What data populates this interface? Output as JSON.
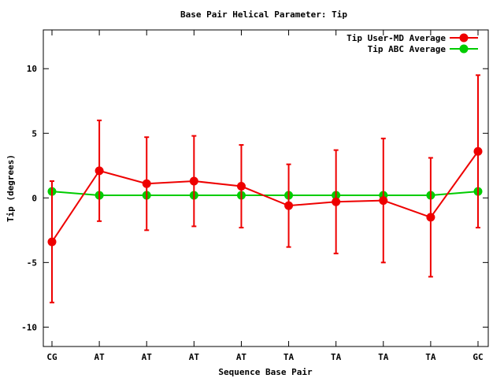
{
  "chart_data": {
    "type": "line",
    "title": "Base Pair Helical Parameter: Tip",
    "xlabel": "Sequence Base Pair",
    "ylabel": "Tip (degrees)",
    "categories": [
      "CG",
      "AT",
      "AT",
      "AT",
      "AT",
      "TA",
      "TA",
      "TA",
      "TA",
      "GC"
    ],
    "ylim": [
      -11.5,
      13
    ],
    "yticks": [
      -10,
      -5,
      0,
      5,
      10
    ],
    "grid": false,
    "legend_position": "top-right",
    "series": [
      {
        "name": "Tip User-MD Average",
        "color": "#ee0000",
        "values": [
          -3.4,
          2.1,
          1.1,
          1.3,
          0.9,
          -0.6,
          -0.3,
          -0.2,
          -1.5,
          3.6
        ],
        "error": [
          4.7,
          3.9,
          3.6,
          3.5,
          3.2,
          3.2,
          4.0,
          4.8,
          4.6,
          5.9
        ]
      },
      {
        "name": "Tip ABC Average",
        "color": "#00cc00",
        "values": [
          0.5,
          0.2,
          0.2,
          0.2,
          0.2,
          0.2,
          0.2,
          0.2,
          0.2,
          0.5
        ]
      }
    ]
  }
}
